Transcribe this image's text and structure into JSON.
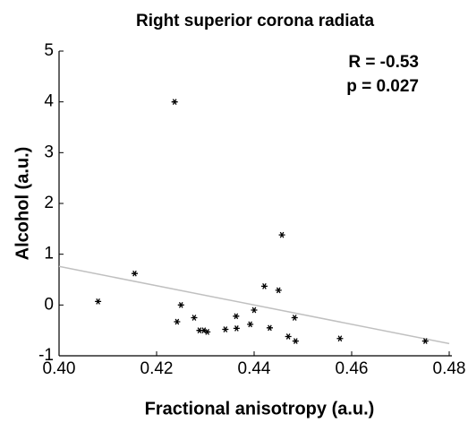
{
  "chart_data": {
    "type": "scatter",
    "title": "Right superior corona radiata",
    "xlabel": "Fractional anisotropy (a.u.)",
    "ylabel": "Alcohol (a.u.)",
    "annotations": [
      "R = -0.53",
      "p = 0.027"
    ],
    "series": [
      {
        "color": "#000000",
        "x": [
          0.408,
          0.4155,
          0.4237,
          0.4242,
          0.425,
          0.4277,
          0.4288,
          0.4297,
          0.4304,
          0.4341,
          0.4363,
          0.4364,
          0.4392,
          0.44,
          0.4421,
          0.4432,
          0.445,
          0.4457,
          0.447,
          0.4483,
          0.4485,
          0.4576,
          0.4751
        ],
        "values": [
          0.07,
          0.62,
          4.0,
          -0.33,
          0.0,
          -0.25,
          -0.5,
          -0.5,
          -0.53,
          -0.48,
          -0.22,
          -0.46,
          -0.38,
          -0.1,
          0.37,
          -0.45,
          0.29,
          1.38,
          -0.62,
          -0.25,
          -0.71,
          -0.66,
          -0.71
        ]
      }
    ],
    "fit_line": {
      "color": "#c0c0c0",
      "x": [
        0.4,
        0.48
      ],
      "values": [
        0.76,
        -0.76
      ]
    },
    "xlim": [
      0.4,
      0.48
    ],
    "xticks": [
      {
        "value": 0.4,
        "label": "0.40"
      },
      {
        "value": 0.42,
        "label": "0.42"
      },
      {
        "value": 0.44,
        "label": "0.44"
      },
      {
        "value": 0.46,
        "label": "0.46"
      },
      {
        "value": 0.48,
        "label": "0.48"
      }
    ],
    "ylim": [
      -1,
      5
    ],
    "yticks": [
      -1,
      0,
      1,
      2,
      3,
      4,
      5
    ]
  }
}
